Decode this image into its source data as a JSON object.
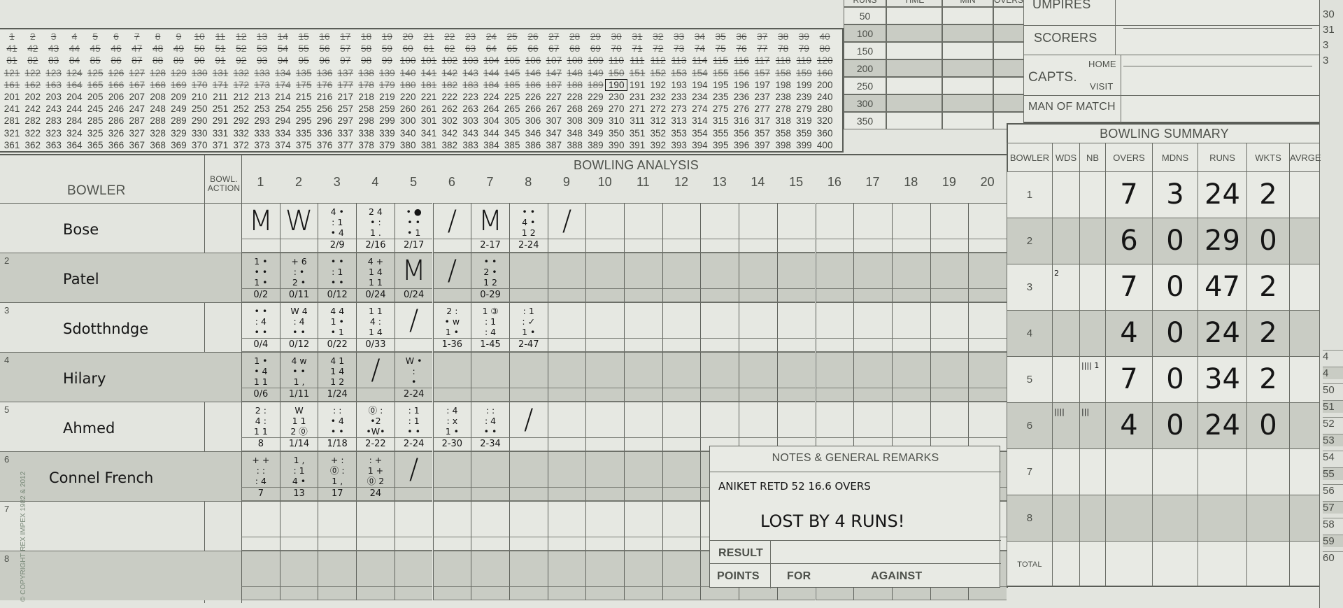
{
  "run_tally": {
    "max": 400,
    "per_row": 40,
    "reached": 190
  },
  "runs_table": {
    "headers": [
      "RUNS",
      "TIME",
      "MIN",
      "OVERS"
    ],
    "milestones": [
      "50",
      "100",
      "150",
      "200",
      "250",
      "300",
      "350"
    ]
  },
  "officials": {
    "umpires": "UMPIRES",
    "scorers": "SCORERS",
    "capts": "CAPTS.",
    "home": "HOME",
    "visit": "VISIT",
    "man_of_match": "MAN OF MATCH"
  },
  "edge_numbers_top": [
    "30",
    "31",
    "3",
    "3"
  ],
  "edge_numbers_bottom": [
    "4",
    "4",
    "50",
    "51",
    "52",
    "53",
    "54",
    "55",
    "56",
    "57",
    "58",
    "59",
    "60"
  ],
  "analysis": {
    "title": "BOWLING ANALYSIS",
    "bowler_header": "BOWLER",
    "action_header": "BOWL. ACTION",
    "over_numbers": [
      "1",
      "2",
      "3",
      "4",
      "5",
      "6",
      "7",
      "8",
      "9",
      "10",
      "11",
      "12",
      "13",
      "14",
      "15",
      "16",
      "17",
      "18",
      "19",
      "20"
    ],
    "bowlers": [
      {
        "num": "",
        "name": "Bose",
        "overs": [
          {
            "big": "M"
          },
          {
            "big": "W"
          },
          {
            "balls": "4 •\n: 1\n• 4",
            "cum": "2/9"
          },
          {
            "balls": "2 4\n• :\n1 .",
            "cum": "2/16"
          },
          {
            "balls": "• ●\n• •\n• 1",
            "cum": "2/17"
          },
          {
            "mark": "/"
          },
          {
            "big": "M",
            "cum": "2-17"
          },
          {
            "balls": "• •\n4 •\n1 2",
            "cum": "2-24"
          },
          {
            "mark": "/"
          }
        ]
      },
      {
        "num": "2",
        "name": "Patel",
        "overs": [
          {
            "balls": "1 •\n• •\n1 •",
            "cum": "0/2"
          },
          {
            "balls": "+ 6\n: •\n2 •",
            "cum": "0/11"
          },
          {
            "balls": "• •\n: 1\n• •",
            "cum": "0/12"
          },
          {
            "balls": "4 +\n1 4\n1 1",
            "cum": "0/24"
          },
          {
            "big": "M",
            "cum": "0/24"
          },
          {
            "mark": "/"
          },
          {
            "balls": "• •\n2 •\n1 2",
            "cum": "0-29"
          }
        ]
      },
      {
        "num": "3",
        "name": "Sdotthndge",
        "overs": [
          {
            "balls": "• •\n: 4\n• •",
            "cum": "0/4"
          },
          {
            "balls": "W 4\n: 4\n• •",
            "cum": "0/12"
          },
          {
            "balls": "4 4\n1 •\n• 1",
            "cum": "0/22"
          },
          {
            "balls": "1 1\n4 :\n1 4",
            "cum": "0/33"
          },
          {
            "mark": "/"
          },
          {
            "balls": "2 :\n• w\n1 •",
            "cum": "1-36"
          },
          {
            "balls": "1 ③\n: 1\n: 4",
            "cum": "1-45"
          },
          {
            "balls": ": 1\n: ✓\n1 •",
            "cum": "2-47"
          }
        ]
      },
      {
        "num": "4",
        "name": "Hilary",
        "overs": [
          {
            "balls": "1 •\n• 4\n1 1",
            "cum": "0/6"
          },
          {
            "balls": "4 w\n• •\n1 ,",
            "cum": "1/11"
          },
          {
            "balls": "4 1\n1 4\n1 2",
            "cum": "1/24"
          },
          {
            "mark": "/"
          },
          {
            "balls": "W •\n:\n•",
            "cum": "2-24"
          }
        ]
      },
      {
        "num": "5",
        "name": "Ahmed",
        "overs": [
          {
            "balls": "2 :\n4 :\n1 1",
            "cum": "8"
          },
          {
            "balls": "W\n1 1\n2 ⓪",
            "cum": "1/14"
          },
          {
            "balls": ": :\n• 4\n• •",
            "cum": "1/18"
          },
          {
            "balls": "⓪ :\n•2\n•W•",
            "cum": "2-22"
          },
          {
            "balls": ": 1\n: 1\n• •",
            "cum": "2-24"
          },
          {
            "balls": ": 4\n: x\n1 •",
            "cum": "2-30"
          },
          {
            "balls": ": :\n: 4\n• •",
            "cum": "2-34"
          },
          {
            "mark": "/"
          }
        ]
      },
      {
        "num": "6",
        "name": "Connel French",
        "overs": [
          {
            "balls": "+ +\n: :\n: 4",
            "cum": "7"
          },
          {
            "balls": "1 ,\n: 1\n4 •",
            "cum": "13"
          },
          {
            "balls": "+ :\n⓪ :\n1 ,",
            "cum": "17"
          },
          {
            "balls": ": +\n1 +\n⓪ 2",
            "cum": "24"
          },
          {
            "mark": "/"
          }
        ]
      },
      {
        "num": "7",
        "name": "",
        "overs": []
      },
      {
        "num": "8",
        "name": "",
        "overs": []
      }
    ]
  },
  "notes": {
    "title": "NOTES & GENERAL REMARKS",
    "line1": "ANIKET RETD 52  16.6 OVERS",
    "line2": "LOST BY 4 RUNS!",
    "result_label": "RESULT",
    "points_label": "POINTS",
    "for_label": "FOR",
    "against_label": "AGAINST"
  },
  "summary": {
    "title": "BOWLING SUMMARY",
    "headers": [
      "BOWLER",
      "WDS",
      "NB",
      "OVERS",
      "MDNS",
      "RUNS",
      "WKTS",
      "AVRGE"
    ],
    "rows": [
      {
        "bowler": "1",
        "wds": "",
        "nb": "",
        "overs": "7",
        "mdns": "3",
        "runs": "24",
        "wkts": "2",
        "avrge": ""
      },
      {
        "bowler": "2",
        "wds": "",
        "nb": "",
        "overs": "6",
        "mdns": "0",
        "runs": "29",
        "wkts": "0",
        "avrge": ""
      },
      {
        "bowler": "3",
        "wds": "2",
        "nb": "",
        "overs": "7",
        "mdns": "0",
        "runs": "47",
        "wkts": "2",
        "avrge": ""
      },
      {
        "bowler": "4",
        "wds": "",
        "nb": "",
        "overs": "4",
        "mdns": "0",
        "runs": "24",
        "wkts": "2",
        "avrge": ""
      },
      {
        "bowler": "5",
        "wds": "",
        "nb": "|||| 1",
        "overs": "7",
        "mdns": "0",
        "runs": "34",
        "wkts": "2",
        "avrge": ""
      },
      {
        "bowler": "6",
        "wds": "||||",
        "nb": "|||",
        "overs": "4",
        "mdns": "0",
        "runs": "24",
        "wkts": "0",
        "avrge": ""
      },
      {
        "bowler": "7",
        "wds": "",
        "nb": "",
        "overs": "",
        "mdns": "",
        "runs": "",
        "wkts": "",
        "avrge": ""
      },
      {
        "bowler": "8",
        "wds": "",
        "nb": "",
        "overs": "",
        "mdns": "",
        "runs": "",
        "wkts": "",
        "avrge": ""
      }
    ],
    "total_label": "TOTAL"
  },
  "copyright": "© COPYRIGHT REX IMPEX 1982 & 2012"
}
